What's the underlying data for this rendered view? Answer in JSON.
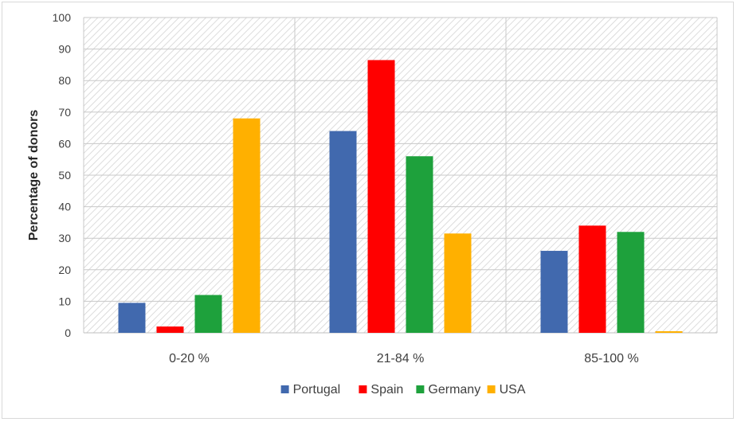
{
  "chart_data": {
    "type": "bar",
    "ylabel": "Percentage of donors",
    "xlabel": "",
    "ylim": [
      0,
      100
    ],
    "yticks": [
      "0",
      "10",
      "20",
      "30",
      "40",
      "50",
      "60",
      "70",
      "80",
      "90",
      "100"
    ],
    "categories": [
      "0-20 %",
      "21-84 %",
      "85-100 %"
    ],
    "series": [
      {
        "name": "Portugal",
        "color": "#4169AE",
        "values": [
          9.5,
          64,
          26
        ]
      },
      {
        "name": "Spain",
        "color": "#FF0000",
        "values": [
          2,
          86.5,
          34
        ]
      },
      {
        "name": "Germany",
        "color": "#1EA13C",
        "values": [
          12,
          56,
          32
        ]
      },
      {
        "name": "USA",
        "color": "#FFB000",
        "values": [
          68,
          31.5,
          0.5
        ]
      }
    ],
    "grid": true,
    "plot_background": "diagonal-hatch",
    "legend_position": "bottom"
  }
}
